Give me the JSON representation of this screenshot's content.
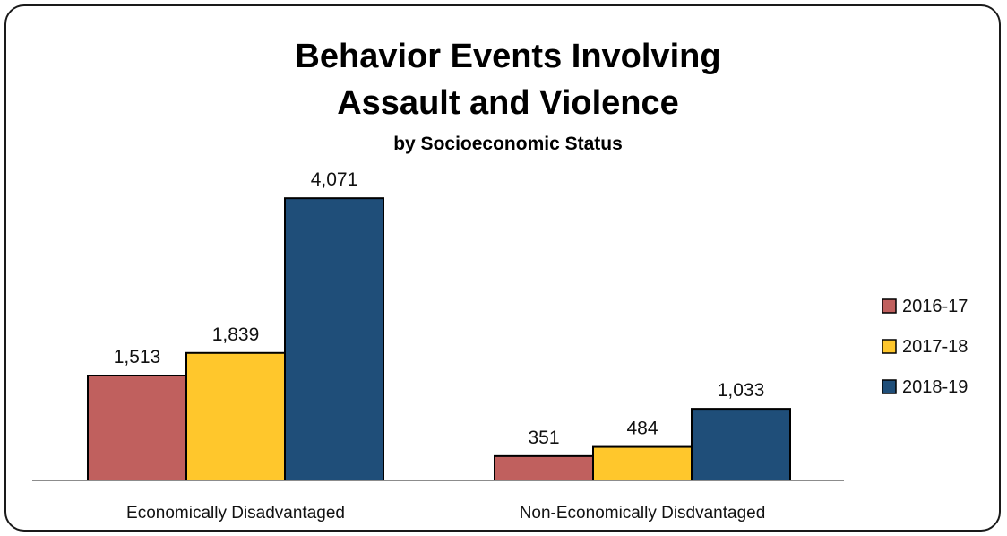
{
  "chart_data": {
    "type": "bar",
    "title_line1": "Behavior Events Involving",
    "title_line2": "Assault and Violence",
    "subtitle": "by Socioeconomic Status",
    "categories": [
      "Economically Disadvantaged",
      "Non-Economically Disdvantaged"
    ],
    "series": [
      {
        "name": "2016-17",
        "values": [
          1513,
          351
        ],
        "labels": [
          "1,513",
          "351"
        ],
        "color": "#C0605E"
      },
      {
        "name": "2017-18",
        "values": [
          1839,
          484
        ],
        "labels": [
          "1,839",
          "484"
        ],
        "color": "#FFC72C"
      },
      {
        "name": "2018-19",
        "values": [
          4071,
          1033
        ],
        "labels": [
          "4,071",
          "1,033"
        ],
        "color": "#1F4E79"
      }
    ],
    "ylim": [
      0,
      4500
    ],
    "grid": false,
    "legend_position": "right"
  }
}
